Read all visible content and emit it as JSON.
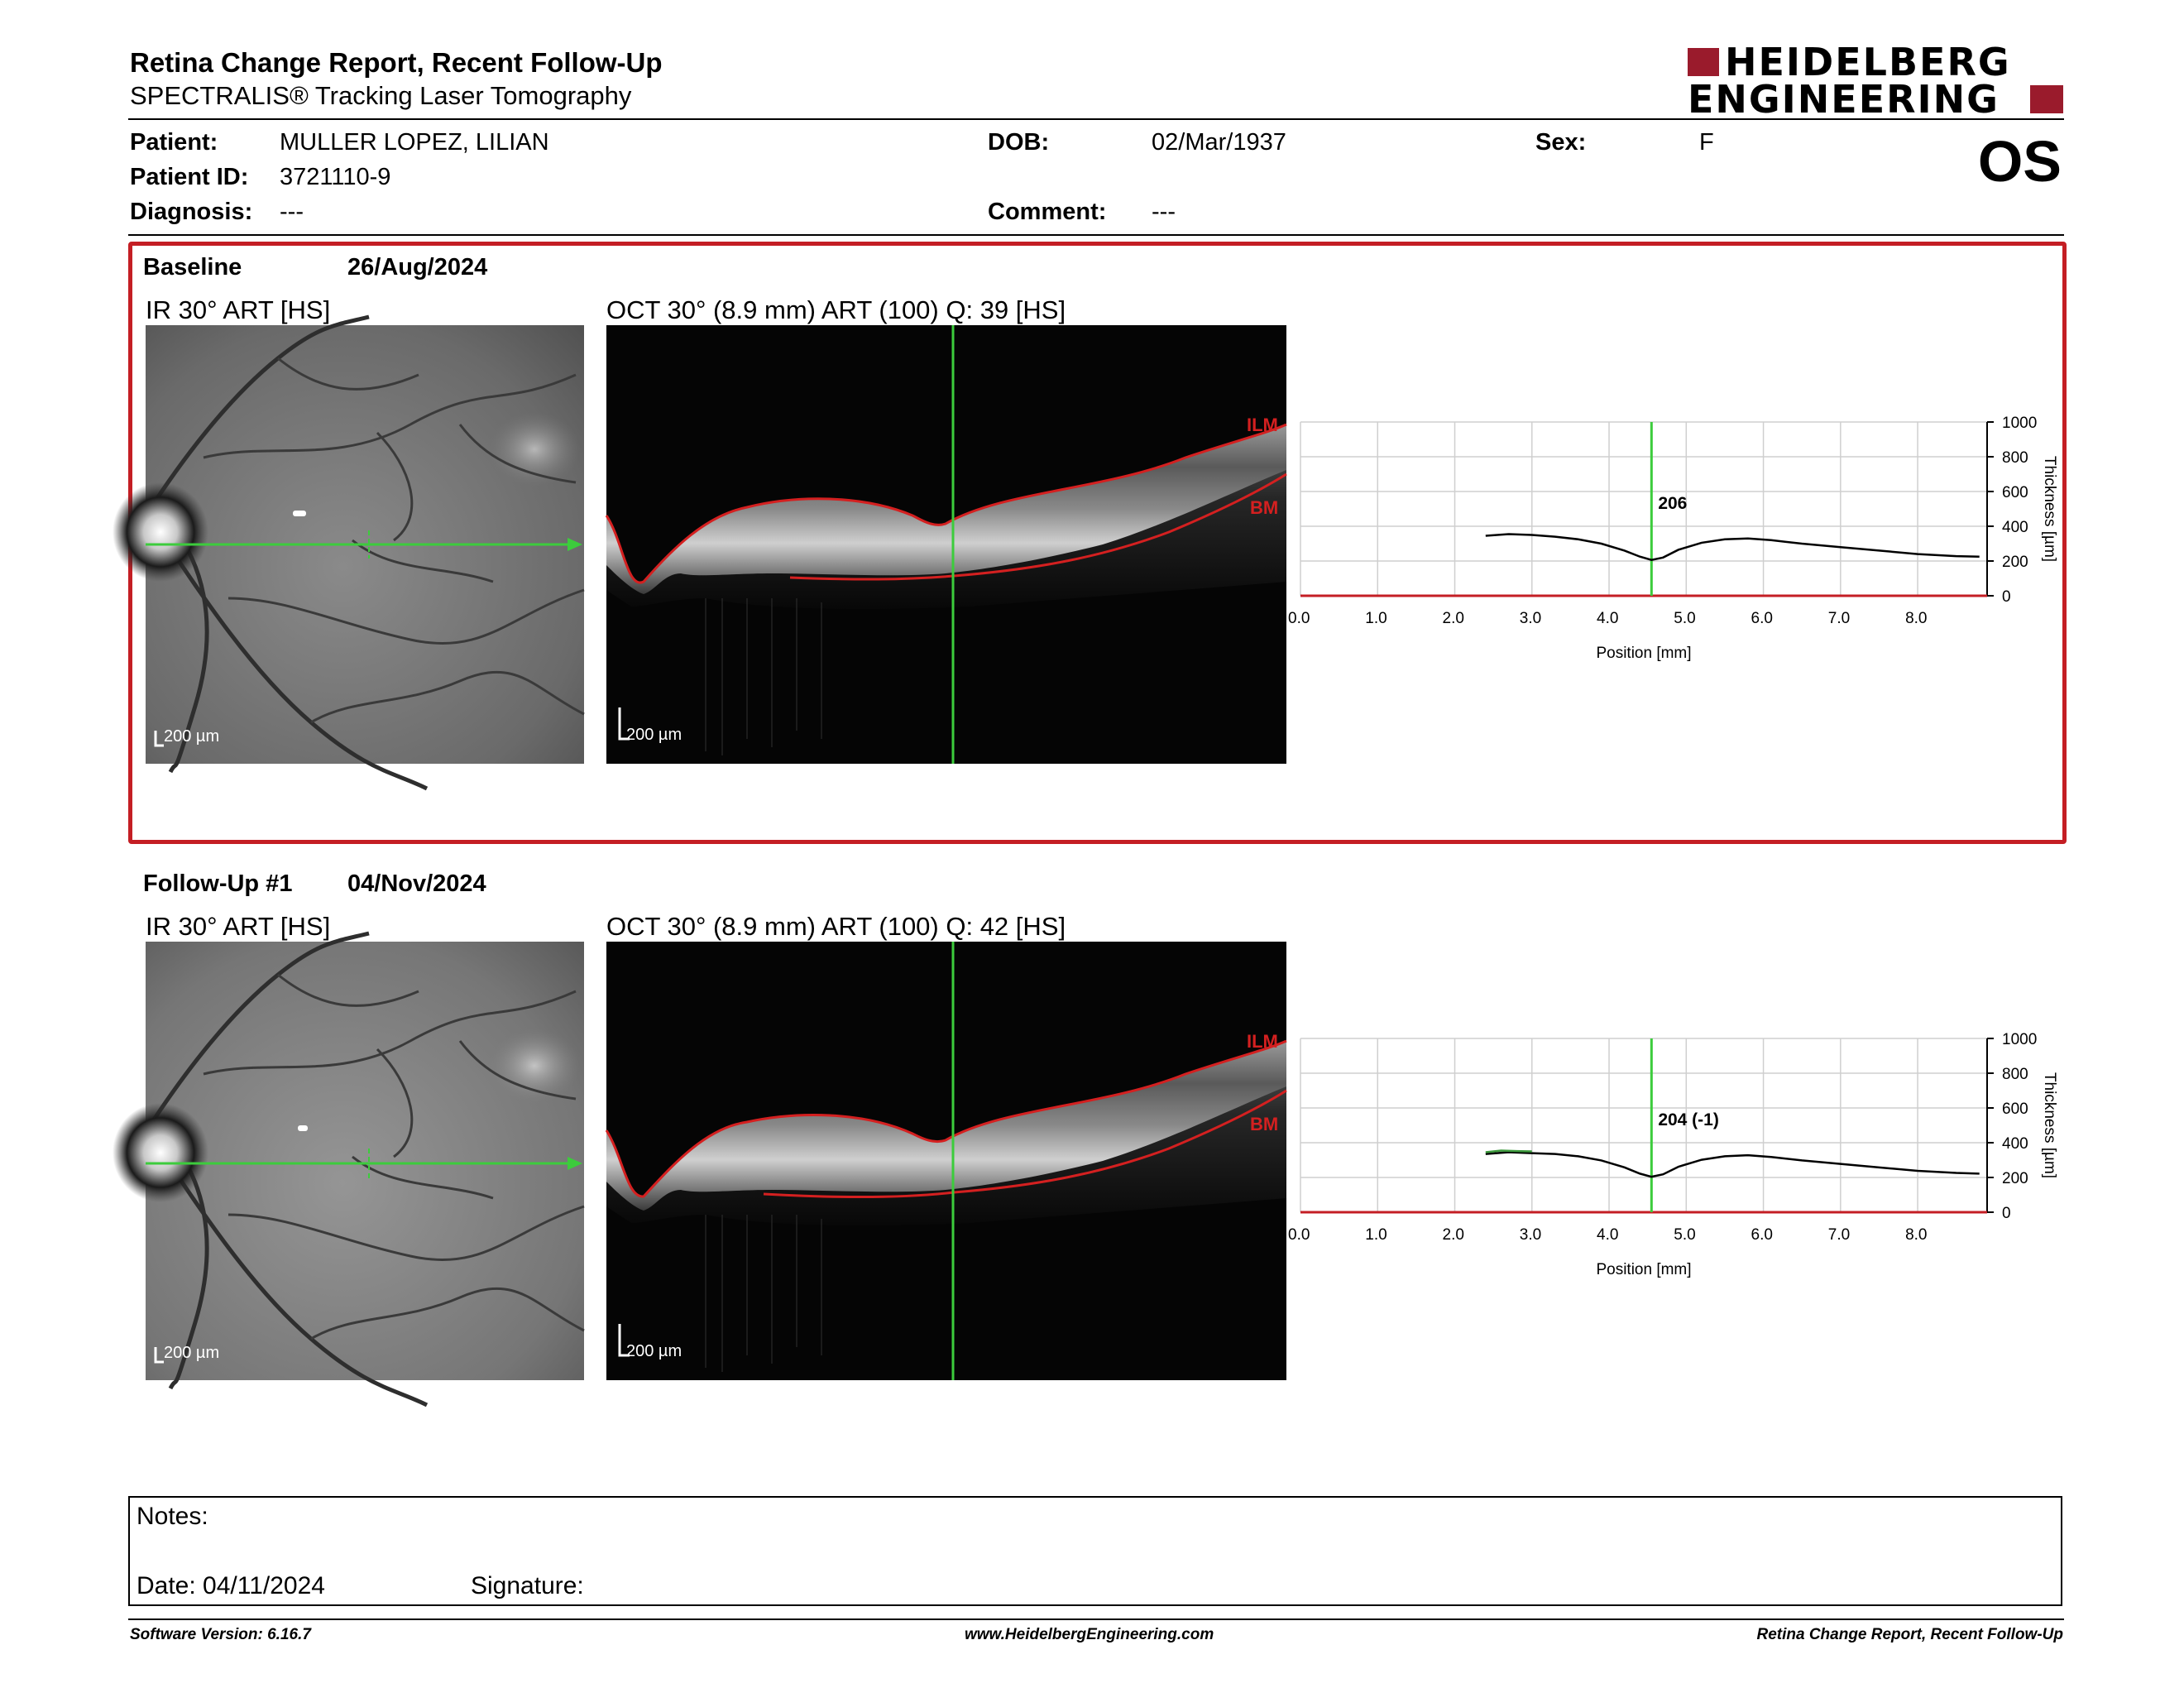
{
  "header": {
    "title": "Retina Change Report, Recent Follow-Up",
    "subtitle": "SPECTRALIS® Tracking Laser Tomography",
    "logo_line1": "HEIDELBERG",
    "logo_line2": "ENGINEERING"
  },
  "patient": {
    "patient_label": "Patient:",
    "patient_value": "MULLER LOPEZ, LILIAN",
    "id_label": "Patient ID:",
    "id_value": "3721110-9",
    "diagnosis_label": "Diagnosis:",
    "diagnosis_value": "---",
    "dob_label": "DOB:",
    "dob_value": "02/Mar/1937",
    "comment_label": "Comment:",
    "comment_value": "---",
    "sex_label": "Sex:",
    "sex_value": "F",
    "eye": "OS"
  },
  "baseline": {
    "label": "Baseline",
    "date": "26/Aug/2024",
    "ir_title": "IR 30° ART [HS]",
    "oct_title": "OCT 30° (8.9 mm) ART (100) Q: 39 [HS]",
    "scale_ir": "200 µm",
    "scale_oct": "200 µm",
    "ilm": "ILM",
    "bm": "BM"
  },
  "followup": {
    "label": "Follow-Up #1",
    "date": "04/Nov/2024",
    "ir_title": "IR 30° ART [HS]",
    "oct_title": "OCT 30° (8.9 mm) ART (100) Q: 42 [HS]",
    "scale_ir": "200 µm",
    "scale_oct": "200 µm",
    "ilm": "ILM",
    "bm": "BM"
  },
  "chart_data": [
    {
      "type": "line",
      "xlabel": "Position [mm]",
      "ylabel": "Thickness [µm]",
      "xlim": [
        0,
        8.9
      ],
      "ylim": [
        0,
        1000
      ],
      "x_ticks": [
        "0.0",
        "1.0",
        "2.0",
        "3.0",
        "4.0",
        "5.0",
        "6.0",
        "7.0",
        "8.0"
      ],
      "y_ticks": [
        "0",
        "200",
        "400",
        "600",
        "800",
        "1000"
      ],
      "cursor_x": 4.55,
      "cursor_label": "206",
      "grid": true,
      "series": [
        {
          "color": "#000000",
          "x": [
            2.4,
            2.7,
            3.0,
            3.3,
            3.6,
            3.9,
            4.2,
            4.4,
            4.55,
            4.7,
            4.9,
            5.2,
            5.5,
            5.8,
            6.1,
            6.5,
            7.0,
            7.5,
            8.0,
            8.5,
            8.8
          ],
          "y": [
            345,
            355,
            350,
            340,
            325,
            300,
            260,
            225,
            206,
            220,
            265,
            305,
            325,
            330,
            320,
            300,
            280,
            260,
            240,
            228,
            225
          ]
        }
      ]
    },
    {
      "type": "line",
      "xlabel": "Position [mm]",
      "ylabel": "Thickness [µm]",
      "xlim": [
        0,
        8.9
      ],
      "ylim": [
        0,
        1000
      ],
      "x_ticks": [
        "0.0",
        "1.0",
        "2.0",
        "3.0",
        "4.0",
        "5.0",
        "6.0",
        "7.0",
        "8.0"
      ],
      "y_ticks": [
        "0",
        "200",
        "400",
        "600",
        "800",
        "1000"
      ],
      "cursor_x": 4.55,
      "cursor_label": "204 (-1)",
      "grid": true,
      "series": [
        {
          "color": "#000000",
          "x": [
            2.4,
            2.7,
            3.0,
            3.3,
            3.6,
            3.9,
            4.2,
            4.4,
            4.55,
            4.7,
            4.9,
            5.2,
            5.5,
            5.8,
            6.1,
            6.5,
            7.0,
            7.5,
            8.0,
            8.5,
            8.8
          ],
          "y": [
            335,
            345,
            340,
            335,
            322,
            298,
            258,
            222,
            204,
            218,
            262,
            302,
            322,
            328,
            318,
            298,
            278,
            258,
            238,
            226,
            222
          ]
        },
        {
          "color": "#3c9a3c",
          "x": [
            2.4,
            2.6,
            2.8,
            3.0
          ],
          "y": [
            345,
            355,
            352,
            350
          ]
        }
      ]
    }
  ],
  "notes": {
    "notes_label": "Notes:",
    "date_label": "Date: 04/11/2024",
    "signature_label": "Signature:"
  },
  "footer": {
    "version": "Software Version: 6.16.7",
    "website": "www.HeidelbergEngineering.com",
    "report": "Retina Change Report, Recent Follow-Up"
  },
  "colors": {
    "frame": "#c41e24",
    "scanline": "#3ccc3c",
    "segmentation": "#d42020",
    "logo": "#9a1b2c"
  }
}
